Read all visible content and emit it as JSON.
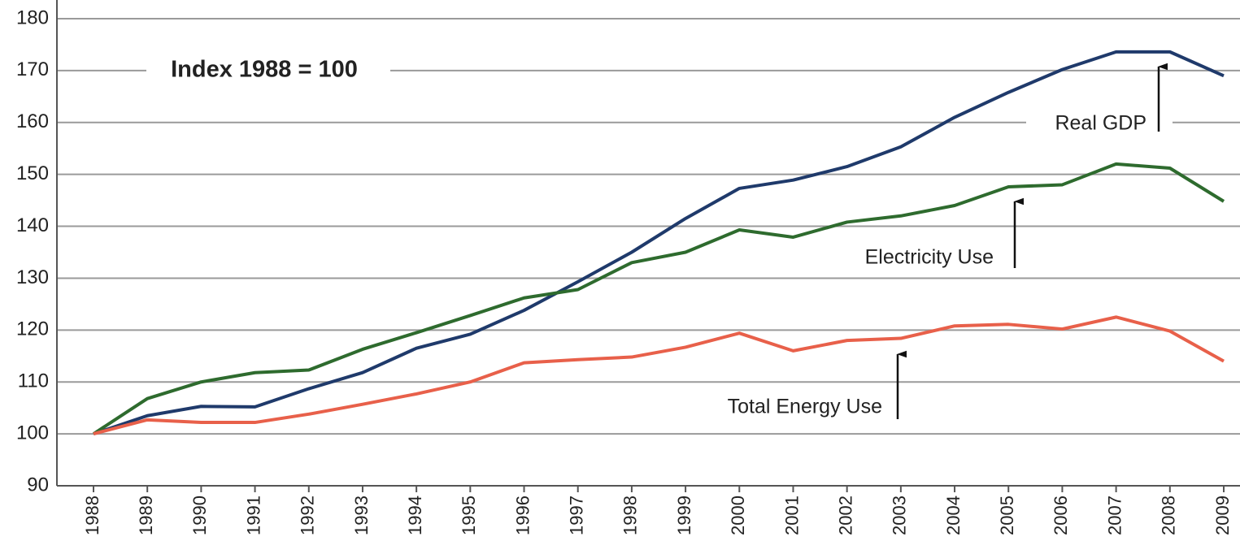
{
  "chart_data": {
    "type": "line",
    "title": "Index 1988 = 100",
    "categories": [
      "1988",
      "1989",
      "1990",
      "1991",
      "1992",
      "1993",
      "1994",
      "1995",
      "1996",
      "1997",
      "1998",
      "1999",
      "2000",
      "2001",
      "2002",
      "2003",
      "2004",
      "2005",
      "2006",
      "2007",
      "2008",
      "2009"
    ],
    "series": [
      {
        "name": "Real GDP",
        "color": "#1f3a6b",
        "values": [
          100,
          103.5,
          105.3,
          105.2,
          108.7,
          111.8,
          116.5,
          119.2,
          123.8,
          129.3,
          135.0,
          141.5,
          147.3,
          148.9,
          151.5,
          155.3,
          161.0,
          165.8,
          170.2,
          173.6,
          173.6,
          169.0
        ]
      },
      {
        "name": "Electricity Use",
        "color": "#2e6b2e",
        "values": [
          100,
          106.8,
          110.0,
          111.8,
          112.3,
          116.3,
          119.5,
          122.8,
          126.2,
          127.8,
          133.0,
          135.0,
          139.3,
          137.9,
          140.8,
          142.0,
          144.0,
          147.6,
          148.0,
          152.0,
          151.2,
          144.8
        ]
      },
      {
        "name": "Total Energy Use",
        "color": "#e8604a",
        "values": [
          100,
          102.7,
          102.2,
          102.2,
          103.8,
          105.7,
          107.7,
          110.0,
          113.7,
          114.3,
          114.8,
          116.7,
          119.4,
          116.0,
          118.0,
          118.4,
          120.8,
          121.1,
          120.2,
          122.5,
          119.8,
          114.0
        ]
      }
    ],
    "ylim": [
      90,
      180
    ],
    "yticks": [
      90,
      100,
      110,
      120,
      130,
      140,
      150,
      160,
      170,
      180
    ],
    "grid": true
  }
}
